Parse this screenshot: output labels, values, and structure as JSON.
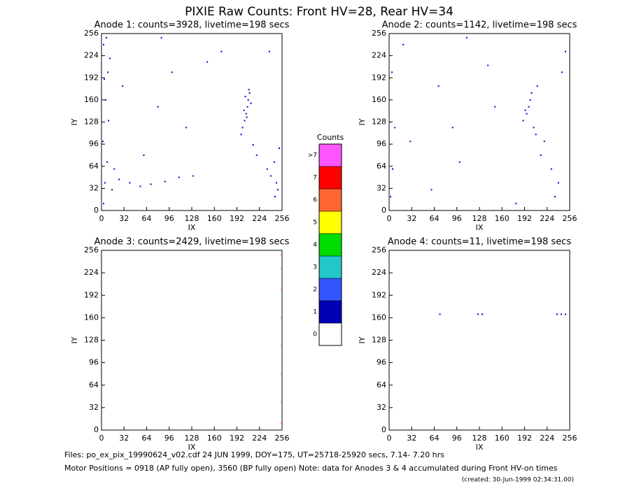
{
  "title": "PIXIE Raw Counts:  Front HV=28, Rear HV=34",
  "footer": [
    "Files: po_ex_pix_19990624_v02.cdf    24 JUN 1999, DOY=175, UT=25718-25920 secs,  7.14- 7.20 hrs",
    "Motor Positions = 0918 (AP fully open), 3560 (BP fully open)    Note: data for Anodes 3 & 4 accumulated during Front HV-on times",
    "(created: 30-Jun-1999 02:34:31.00)"
  ],
  "chart_data": [
    {
      "type": "scatter",
      "title": "Anode 1: counts=3928, livetime=198 secs",
      "xlabel": "IX",
      "ylabel": "IY",
      "color": "#0000c0",
      "xlim": [
        0,
        256
      ],
      "ylim": [
        0,
        256
      ],
      "xticks": [
        0,
        32,
        64,
        96,
        128,
        160,
        192,
        224,
        256
      ],
      "yticks": [
        0,
        32,
        64,
        96,
        128,
        160,
        192,
        224,
        256
      ],
      "x": [
        3,
        5,
        8,
        2,
        10,
        6,
        4,
        12,
        7,
        15,
        9,
        3,
        18,
        25,
        40,
        55,
        70,
        90,
        110,
        130,
        60,
        80,
        100,
        200,
        203,
        205,
        207,
        208,
        210,
        202,
        206,
        212,
        204,
        209,
        198,
        215,
        220,
        235,
        240,
        245,
        248,
        250,
        252,
        246,
        238,
        30,
        150,
        170,
        120,
        85
      ],
      "y": [
        10,
        40,
        70,
        100,
        130,
        160,
        190,
        220,
        250,
        30,
        200,
        240,
        60,
        45,
        40,
        35,
        38,
        42,
        48,
        50,
        80,
        150,
        200,
        120,
        130,
        140,
        150,
        160,
        170,
        145,
        135,
        155,
        165,
        175,
        110,
        95,
        80,
        60,
        50,
        70,
        40,
        30,
        90,
        20,
        230,
        180,
        215,
        230,
        120,
        250
      ]
    },
    {
      "type": "scatter",
      "title": "Anode 2: counts=1142, livetime=198 secs",
      "xlabel": "IX",
      "ylabel": "IY",
      "color": "#0000c0",
      "xlim": [
        0,
        256
      ],
      "ylim": [
        0,
        256
      ],
      "xticks": [
        0,
        32,
        64,
        96,
        128,
        160,
        192,
        224,
        256
      ],
      "yticks": [
        0,
        32,
        64,
        96,
        128,
        160,
        192,
        224,
        256
      ],
      "x": [
        2,
        5,
        8,
        4,
        20,
        60,
        100,
        150,
        190,
        195,
        198,
        200,
        202,
        205,
        208,
        210,
        193,
        215,
        230,
        240,
        245,
        250,
        235,
        110,
        70,
        30,
        180,
        220,
        140,
        90
      ],
      "y": [
        20,
        60,
        120,
        200,
        240,
        30,
        70,
        150,
        130,
        140,
        150,
        160,
        170,
        120,
        110,
        180,
        145,
        80,
        60,
        40,
        200,
        230,
        20,
        250,
        180,
        100,
        10,
        100,
        210,
        120
      ]
    },
    {
      "type": "scatter",
      "title": "Anode 3: counts=2429, livetime=198 secs",
      "xlabel": "IX",
      "ylabel": "IY",
      "color": "#ff55ff",
      "xlim": [
        0,
        256
      ],
      "ylim": [
        0,
        256
      ],
      "xticks": [
        0,
        32,
        64,
        96,
        128,
        160,
        192,
        224,
        256
      ],
      "yticks": [
        0,
        32,
        64,
        96,
        128,
        160,
        192,
        224,
        256
      ],
      "x": [
        255,
        255,
        255,
        255,
        255,
        255,
        255,
        255
      ],
      "y": [
        10,
        40,
        80,
        120,
        160,
        200,
        230,
        250
      ]
    },
    {
      "type": "scatter",
      "title": "Anode 4: counts=11, livetime=198 secs",
      "xlabel": "IX",
      "ylabel": "IY",
      "color": "#0000c0",
      "xlim": [
        0,
        256
      ],
      "ylim": [
        0,
        256
      ],
      "xticks": [
        0,
        32,
        64,
        96,
        128,
        160,
        192,
        224,
        256
      ],
      "yticks": [
        0,
        32,
        64,
        96,
        128,
        160,
        192,
        224,
        256
      ],
      "x": [
        72,
        126,
        132,
        238,
        244,
        250
      ],
      "y": [
        165,
        165,
        165,
        165,
        165,
        165
      ]
    },
    {
      "type": "colorbar",
      "title": "Counts",
      "categories": [
        "0",
        "1",
        "2",
        "3",
        "4",
        "5",
        "6",
        "7",
        ">7"
      ],
      "colors": [
        "#ffffff",
        "#0000b4",
        "#3355ff",
        "#22c8c8",
        "#00dd00",
        "#ffff00",
        "#ff6633",
        "#ff0000",
        "#ff55ff"
      ]
    }
  ]
}
